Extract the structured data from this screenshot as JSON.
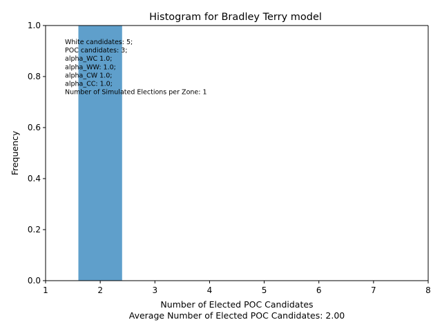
{
  "chart_data": {
    "type": "bar",
    "title": "Histogram for Bradley Terry model",
    "xlabel": "Number of Elected POC Candidates",
    "xlabel_sub": "Average Number of Elected POC Candidates: 2.00",
    "ylabel": "Frequency",
    "xlim": [
      1,
      8
    ],
    "ylim": [
      0,
      1.0
    ],
    "x_ticks": [
      "1",
      "2",
      "3",
      "4",
      "5",
      "6",
      "7",
      "8"
    ],
    "y_ticks": [
      "0.0",
      "0.2",
      "0.4",
      "0.6",
      "0.8",
      "1.0"
    ],
    "bars": [
      {
        "x_start": 1.6,
        "x_end": 2.4,
        "value": 1.0
      }
    ],
    "bar_color": "#5f9fcb",
    "grid": false,
    "annotation_lines": [
      "White candidates: 5;",
      "POC candidates: 3;",
      "alpha_WC 1.0;",
      "alpha_WW: 1.0;",
      "alpha_CW 1.0;",
      "alpha_CC: 1.0;",
      "Number of Simulated Elections per Zone: 1"
    ]
  }
}
